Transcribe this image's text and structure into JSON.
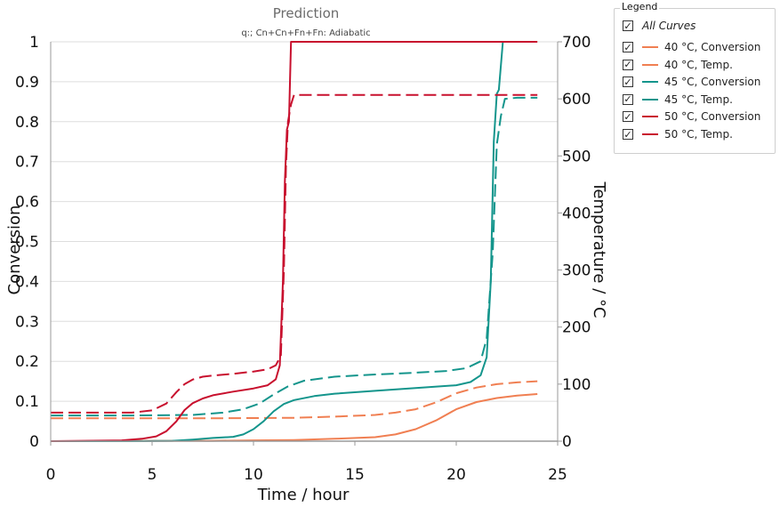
{
  "chart_data": {
    "type": "line",
    "title": "Prediction",
    "subtitle": "q:; Cn+Cn+Fn+Fn: Adiabatic",
    "xlabel": "Time / hour",
    "ylabel": "Conversion",
    "y2label": "Temperature / °C",
    "xlim": [
      0,
      25
    ],
    "ylim": [
      0,
      1
    ],
    "y2lim": [
      0,
      700
    ],
    "x_ticks": [
      "0",
      "5",
      "10",
      "15",
      "20",
      "25"
    ],
    "y_ticks": [
      "0",
      "0.1",
      "0.2",
      "0.3",
      "0.4",
      "0.5",
      "0.6",
      "0.7",
      "0.8",
      "0.9",
      "1"
    ],
    "y2_ticks": [
      "0",
      "100",
      "200",
      "300",
      "400",
      "500",
      "600",
      "700"
    ],
    "grid": true,
    "legend_position": "right",
    "series": [
      {
        "name": "40 °C, Conversion",
        "axis": "left",
        "color": "#f07f52",
        "dash": false,
        "x": [
          0,
          2,
          4,
          6,
          8,
          10,
          12,
          14,
          16,
          17,
          18,
          19,
          20,
          21,
          22,
          23,
          24
        ],
        "y": [
          0,
          0,
          0.001,
          0.001,
          0.001,
          0.002,
          0.003,
          0.006,
          0.01,
          0.017,
          0.03,
          0.052,
          0.08,
          0.098,
          0.108,
          0.114,
          0.118
        ]
      },
      {
        "name": "40 °C, Temp.",
        "axis": "right",
        "color": "#f07f52",
        "dash": true,
        "x": [
          0,
          4,
          8,
          12,
          14,
          16,
          17,
          18,
          19,
          20,
          21,
          22,
          23,
          24
        ],
        "y": [
          40,
          40,
          40,
          41,
          43,
          46,
          50,
          56,
          68,
          84,
          94,
          100,
          103,
          105
        ]
      },
      {
        "name": "45 °C, Conversion",
        "axis": "left",
        "color": "#14958c",
        "dash": false,
        "x": [
          0,
          4,
          6,
          7,
          8,
          9,
          9.5,
          10,
          10.5,
          11,
          11.5,
          12,
          13,
          14,
          16,
          18,
          20,
          20.7,
          21.2,
          21.5,
          21.7,
          21.85,
          22,
          22.1,
          22.3
        ],
        "y": [
          0,
          0,
          0.001,
          0.004,
          0.008,
          0.011,
          0.017,
          0.03,
          0.05,
          0.075,
          0.093,
          0.103,
          0.113,
          0.119,
          0.126,
          0.133,
          0.14,
          0.148,
          0.165,
          0.21,
          0.4,
          0.75,
          0.87,
          0.88,
          1.0
        ]
      },
      {
        "name": "45 °C, Temp.",
        "axis": "right",
        "color": "#14958c",
        "dash": true,
        "x": [
          0,
          4,
          7,
          8.5,
          9.5,
          10.3,
          11,
          11.7,
          12.5,
          14,
          16,
          18,
          19.5,
          20.5,
          21.2,
          21.5,
          21.8,
          22.0,
          22.2,
          22.4,
          23,
          24
        ],
        "y": [
          45,
          45,
          46,
          50,
          56,
          66,
          82,
          96,
          106,
          113,
          117,
          120,
          123,
          128,
          140,
          180,
          330,
          520,
          570,
          600,
          602,
          602
        ]
      },
      {
        "name": "50 °C, Conversion",
        "axis": "left",
        "color": "#c8102e",
        "dash": false,
        "x": [
          0,
          3.5,
          4.5,
          5.2,
          5.7,
          6.2,
          6.6,
          7.0,
          7.5,
          8,
          9,
          10,
          10.7,
          11.1,
          11.3,
          11.45,
          11.55,
          11.65,
          11.75,
          11.85,
          12,
          24
        ],
        "y": [
          0,
          0.002,
          0.006,
          0.012,
          0.025,
          0.05,
          0.078,
          0.095,
          0.107,
          0.115,
          0.124,
          0.132,
          0.14,
          0.155,
          0.19,
          0.4,
          0.65,
          0.78,
          0.8,
          1.0,
          1.0,
          1.0
        ]
      },
      {
        "name": "50 °C, Temp.",
        "axis": "right",
        "color": "#c8102e",
        "dash": true,
        "x": [
          0,
          4,
          5,
          5.7,
          6.2,
          6.6,
          7,
          7.5,
          8,
          9,
          10,
          10.7,
          11.1,
          11.35,
          11.5,
          11.6,
          11.7,
          11.85,
          12,
          24
        ],
        "y": [
          50,
          50,
          54,
          66,
          86,
          100,
          108,
          113,
          115,
          118,
          122,
          126,
          133,
          150,
          300,
          480,
          560,
          590,
          607,
          607
        ]
      }
    ]
  },
  "legend": {
    "caption": "Legend",
    "all_label": "All Curves",
    "checkmark": "✓"
  }
}
